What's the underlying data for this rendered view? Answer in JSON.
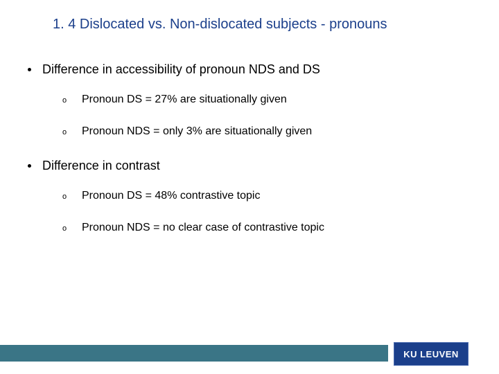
{
  "title": "1. 4 Dislocated vs. Non-dislocated subjects - pronouns",
  "bullets": [
    {
      "text": "Difference in accessibility of pronoun NDS and DS",
      "subs": [
        "Pronoun DS = 27% are situationally given",
        "Pronoun NDS = only 3% are situationally given"
      ]
    },
    {
      "text": "Difference in contrast",
      "subs": [
        "Pronoun DS = 48% contrastive topic",
        "Pronoun NDS = no clear case of contrastive topic"
      ]
    }
  ],
  "logo": "KU LEUVEN",
  "colors": {
    "title": "#1b3f8b",
    "logo_bg": "#1b3f8b",
    "footer_bar": "#3a7586",
    "text": "#000000",
    "background": "#ffffff"
  },
  "typography": {
    "title_fontsize": 20,
    "bullet_fontsize": 18,
    "sub_fontsize": 16,
    "logo_fontsize": 13
  }
}
